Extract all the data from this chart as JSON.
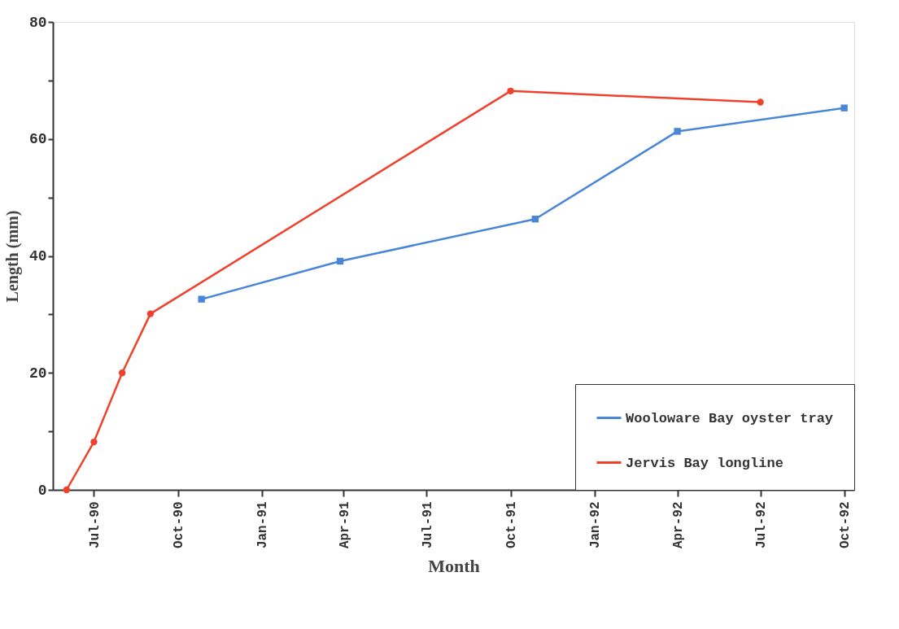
{
  "chart_data": {
    "type": "line",
    "xlabel": "Month",
    "ylabel": "Length (mm)",
    "xlim": [
      "1990-05-17",
      "1992-10-12"
    ],
    "xticks": [
      {
        "value": "1990-07-01",
        "label": "Jul-90"
      },
      {
        "value": "1990-10-01",
        "label": "Oct-90"
      },
      {
        "value": "1991-01-01",
        "label": "Jan-91"
      },
      {
        "value": "1991-04-01",
        "label": "Apr-91"
      },
      {
        "value": "1991-07-01",
        "label": "Jul-91"
      },
      {
        "value": "1991-10-01",
        "label": "Oct-91"
      },
      {
        "value": "1992-01-01",
        "label": "Jan-92"
      },
      {
        "value": "1992-04-01",
        "label": "Apr-92"
      },
      {
        "value": "1992-07-01",
        "label": "Jul-92"
      },
      {
        "value": "1992-10-01",
        "label": "Oct-92"
      }
    ],
    "ylim": [
      0,
      80
    ],
    "yticks": [
      0,
      {
        "value": 10,
        "label": null
      },
      20,
      {
        "value": 30,
        "label": null
      },
      40,
      {
        "value": 50,
        "label": null
      },
      60,
      {
        "value": 70,
        "label": null
      },
      80
    ],
    "series": [
      {
        "name": "Wooloware Bay oyster tray",
        "color": "#4a86d8",
        "marker": "square",
        "x": [
          "1990-10-27",
          "1991-03-28",
          "1991-10-28",
          "1992-04-01",
          "1992-10-01"
        ],
        "values": [
          32.6,
          39.1,
          46.3,
          61.3,
          65.3
        ]
      },
      {
        "name": "Jervis Bay longline",
        "color": "#f0412c",
        "marker": "circle",
        "x": [
          "1990-06-01",
          "1990-07-01",
          "1990-08-01",
          "1990-09-01",
          "1991-10-01",
          "1992-07-01"
        ],
        "values": [
          0,
          8.2,
          20,
          30.1,
          68.2,
          66.3
        ]
      }
    ],
    "legend": "bottom right",
    "grid": false,
    "line_style": "solid"
  }
}
